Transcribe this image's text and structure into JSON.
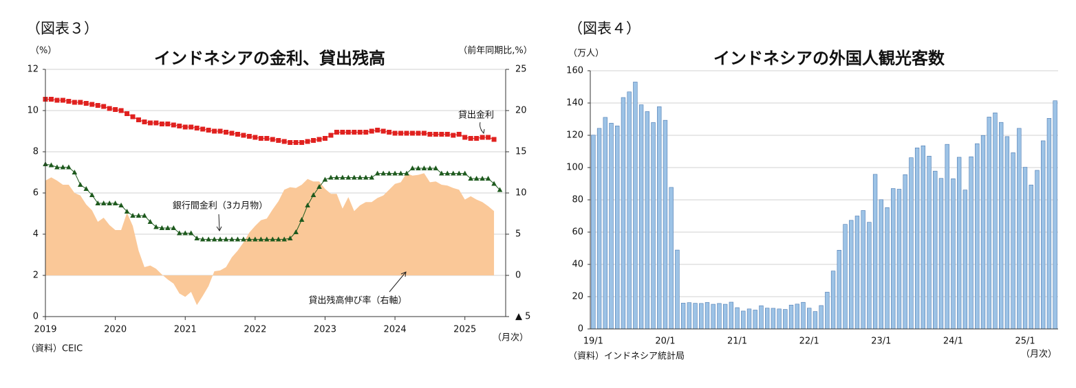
{
  "chart_data": [
    {
      "type": "line",
      "figure_label": "（図表３）",
      "title": "インドネシアの金利、貸出残高",
      "y_unit_label": "（%）",
      "y2_unit_label": "（前年同期比,%）",
      "x_unit_label": "（月次）",
      "source": "（資料）CEIC",
      "categories": [
        "2019",
        null,
        null,
        null,
        null,
        null,
        null,
        null,
        null,
        null,
        null,
        null,
        "2020",
        null,
        null,
        null,
        null,
        null,
        null,
        null,
        null,
        null,
        null,
        null,
        "2021",
        null,
        null,
        null,
        null,
        null,
        null,
        null,
        null,
        null,
        null,
        null,
        "2022",
        null,
        null,
        null,
        null,
        null,
        null,
        null,
        null,
        null,
        null,
        null,
        "2023",
        null,
        null,
        null,
        null,
        null,
        null,
        null,
        null,
        null,
        null,
        null,
        "2024",
        null,
        null,
        null,
        null,
        null,
        null,
        null,
        null,
        null,
        null,
        null,
        "2025",
        null,
        null,
        null,
        null,
        null,
        null
      ],
      "ylim": [
        0,
        12
      ],
      "yticks": [
        0,
        2,
        4,
        6,
        8,
        10,
        12
      ],
      "y2lim": [
        -5,
        25
      ],
      "y2ticks": [
        {
          "value": -5,
          "label": "▲ 5"
        },
        0,
        5,
        10,
        15,
        20,
        25
      ],
      "grid": true,
      "series": [
        {
          "name": "貸出金利",
          "color": "#e0211f",
          "marker": "square",
          "values": [
            10.55,
            10.55,
            10.5,
            10.5,
            10.45,
            10.4,
            10.4,
            10.35,
            10.3,
            10.25,
            10.2,
            10.1,
            10.05,
            10.0,
            9.85,
            9.7,
            9.55,
            9.45,
            9.4,
            9.4,
            9.35,
            9.35,
            9.3,
            9.25,
            9.2,
            9.2,
            9.15,
            9.1,
            9.05,
            9.0,
            9.0,
            8.95,
            8.9,
            8.85,
            8.8,
            8.75,
            8.7,
            8.65,
            8.65,
            8.6,
            8.55,
            8.5,
            8.45,
            8.45,
            8.45,
            8.5,
            8.55,
            8.6,
            8.65,
            8.8,
            8.95,
            8.95,
            8.95,
            8.95,
            8.95,
            8.95,
            9.0,
            9.05,
            9.0,
            8.95,
            8.9,
            8.9,
            8.9,
            8.9,
            8.9,
            8.9,
            8.85,
            8.85,
            8.85,
            8.85,
            8.8,
            8.85,
            8.7,
            8.65,
            8.65,
            8.7,
            8.7,
            8.6,
            null
          ]
        },
        {
          "name": "銀行間金利（3カ月物）",
          "color": "#1e5a1e",
          "marker": "triangle",
          "values": [
            7.4,
            7.35,
            7.25,
            7.25,
            7.25,
            7.0,
            6.4,
            6.2,
            5.9,
            5.5,
            5.5,
            5.5,
            5.5,
            5.4,
            5.1,
            4.9,
            4.9,
            4.9,
            4.6,
            4.35,
            4.3,
            4.3,
            4.3,
            4.05,
            4.05,
            4.05,
            3.8,
            3.75,
            3.75,
            3.75,
            3.75,
            3.75,
            3.75,
            3.75,
            3.75,
            3.75,
            3.75,
            3.75,
            3.75,
            3.75,
            3.75,
            3.75,
            3.8,
            4.1,
            4.7,
            5.4,
            5.9,
            6.3,
            6.65,
            6.75,
            6.75,
            6.75,
            6.75,
            6.75,
            6.75,
            6.75,
            6.75,
            6.95,
            6.95,
            6.95,
            6.95,
            6.95,
            6.95,
            7.2,
            7.2,
            7.2,
            7.2,
            7.2,
            6.95,
            6.95,
            6.95,
            6.95,
            6.95,
            6.7,
            6.7,
            6.7,
            6.7,
            6.45,
            6.15
          ]
        },
        {
          "name": "貸出残高伸び率（右軸）",
          "color": "#fac898",
          "style": "area",
          "axis": "y2",
          "values": [
            11.5,
            11.9,
            11.5,
            11.0,
            11.0,
            10.0,
            9.7,
            8.6,
            7.9,
            6.5,
            7.0,
            6.1,
            5.5,
            5.5,
            7.6,
            6.0,
            3.0,
            1.0,
            1.2,
            0.8,
            0.1,
            -0.5,
            -1.0,
            -2.2,
            -2.6,
            -2.0,
            -3.6,
            -2.5,
            -1.3,
            0.5,
            0.6,
            1.0,
            2.2,
            3.0,
            4.0,
            5.2,
            6.0,
            6.7,
            6.9,
            8.0,
            9.0,
            10.4,
            10.7,
            10.6,
            11.0,
            11.7,
            11.4,
            11.4,
            10.5,
            9.9,
            9.9,
            8.1,
            9.5,
            7.8,
            8.5,
            8.9,
            8.9,
            9.4,
            9.7,
            10.4,
            11.1,
            11.3,
            12.4,
            12.1,
            12.2,
            12.4,
            11.3,
            11.4,
            11.0,
            10.9,
            10.6,
            10.4,
            9.2,
            9.6,
            9.2,
            8.9,
            8.4,
            7.8,
            null
          ]
        }
      ]
    },
    {
      "type": "bar",
      "figure_label": "（図表４）",
      "title": "インドネシアの外国人観光客数",
      "y_unit_label": "（万人）",
      "x_unit_label": "（月次）",
      "source": "（資料）インドネシア統計局",
      "categories": [
        "19/1",
        null,
        null,
        null,
        null,
        null,
        null,
        null,
        null,
        null,
        null,
        null,
        "20/1",
        null,
        null,
        null,
        null,
        null,
        null,
        null,
        null,
        null,
        null,
        null,
        "21/1",
        null,
        null,
        null,
        null,
        null,
        null,
        null,
        null,
        null,
        null,
        null,
        "22/1",
        null,
        null,
        null,
        null,
        null,
        null,
        null,
        null,
        null,
        null,
        null,
        "23/1",
        null,
        null,
        null,
        null,
        null,
        null,
        null,
        null,
        null,
        null,
        null,
        "24/1",
        null,
        null,
        null,
        null,
        null,
        null,
        null,
        null,
        null,
        null,
        null,
        "25/1",
        null,
        null,
        null,
        null,
        null
      ],
      "ylim": [
        0,
        160
      ],
      "yticks": [
        0,
        20,
        40,
        60,
        80,
        100,
        120,
        140,
        160
      ],
      "grid": true,
      "color": "#9dc3e6",
      "values": [
        120.1,
        124.3,
        131.1,
        127.5,
        125.8,
        143.4,
        146.9,
        153.0,
        138.9,
        134.7,
        127.9,
        137.7,
        129.3,
        87.7,
        48.9,
        16.0,
        16.3,
        15.9,
        15.8,
        16.4,
        15.3,
        15.8,
        15.3,
        16.6,
        13.2,
        11.1,
        12.4,
        11.7,
        14.4,
        12.9,
        12.8,
        12.4,
        12.1,
        14.8,
        15.4,
        16.5,
        12.9,
        10.8,
        14.5,
        22.8,
        35.9,
        48.8,
        64.8,
        67.3,
        70.0,
        73.4,
        66.1,
        95.8,
        80.1,
        75.2,
        87.0,
        86.6,
        95.6,
        106.1,
        112.2,
        113.5,
        107.1,
        97.8,
        93.3,
        114.4,
        93.1,
        106.4,
        86.1,
        106.7,
        114.8,
        119.9,
        131.3,
        133.9,
        128.0,
        119.2,
        109.2,
        124.3,
        100.2,
        89.2,
        98.3,
        116.6,
        130.5,
        141.4
      ]
    }
  ]
}
